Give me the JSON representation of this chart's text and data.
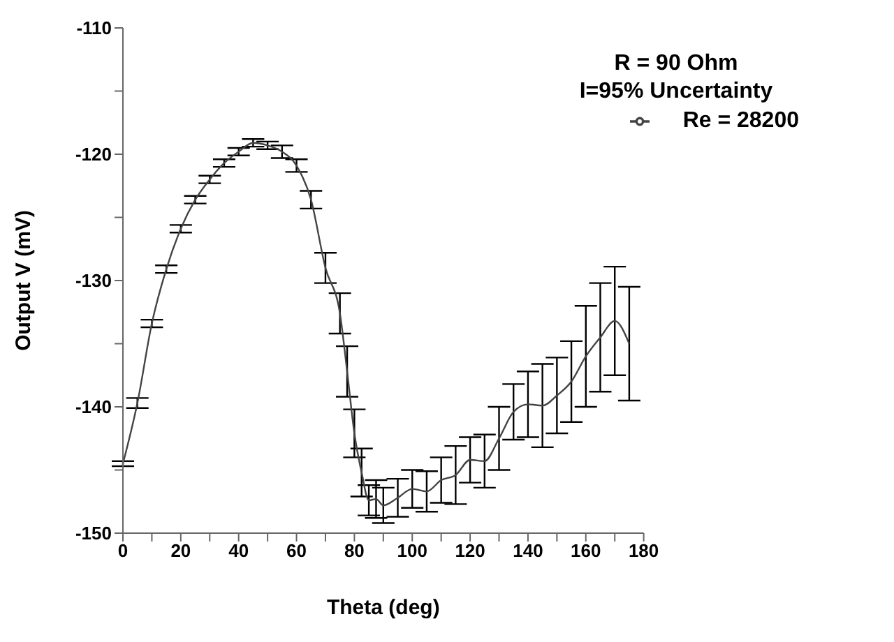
{
  "chart_data": {
    "type": "line",
    "xlabel": "Theta (deg)",
    "ylabel": "Output V  (mV)",
    "annotations": [
      "R = 90 Ohm",
      "I=95% Uncertainty"
    ],
    "x": [
      0,
      5,
      10,
      15,
      20,
      25,
      30,
      35,
      40,
      45,
      50,
      55,
      60,
      65,
      70,
      75,
      77.5,
      80,
      82.5,
      85,
      87.5,
      90,
      95,
      100,
      105,
      110,
      115,
      120,
      125,
      130,
      135,
      140,
      145,
      150,
      155,
      160,
      165,
      170,
      175
    ],
    "series": [
      {
        "name": "Re = 28200",
        "color": "#444444",
        "values": [
          -144.5,
          -139.7,
          -133.4,
          -129.1,
          -125.9,
          -123.6,
          -122.0,
          -120.7,
          -119.8,
          -119.1,
          -119.3,
          -119.8,
          -120.9,
          -123.6,
          -129.0,
          -132.6,
          -137.2,
          -142.1,
          -145.2,
          -147.4,
          -147.3,
          -147.8,
          -147.2,
          -146.5,
          -146.7,
          -145.8,
          -145.4,
          -144.2,
          -144.3,
          -142.5,
          -140.4,
          -139.8,
          -139.9,
          -139.1,
          -138.0,
          -136.0,
          -134.5,
          -133.2,
          -135.0
        ],
        "errors": [
          0.2,
          0.4,
          0.3,
          0.3,
          0.3,
          0.3,
          0.3,
          0.3,
          0.3,
          0.3,
          0.3,
          0.5,
          0.5,
          0.7,
          1.2,
          1.6,
          2.0,
          1.9,
          1.9,
          1.2,
          1.5,
          1.4,
          1.5,
          1.5,
          1.6,
          1.8,
          2.3,
          1.8,
          2.1,
          2.5,
          2.2,
          2.6,
          3.3,
          3.0,
          3.2,
          4.0,
          4.3,
          4.3,
          4.5
        ]
      }
    ],
    "xlim": [
      0,
      180
    ],
    "xticks": [
      0,
      {
        "value": 10,
        "label": null
      },
      20,
      {
        "value": 30,
        "label": null
      },
      40,
      {
        "value": 50,
        "label": null
      },
      60,
      {
        "value": 70,
        "label": null
      },
      80,
      {
        "value": 90,
        "label": null
      },
      100,
      {
        "value": 110,
        "label": null
      },
      120,
      {
        "value": 130,
        "label": null
      },
      140,
      {
        "value": 150,
        "label": null
      },
      160,
      {
        "value": 170,
        "label": null
      },
      180
    ],
    "ylim": [
      -150,
      -110
    ],
    "yticks": [
      -150,
      {
        "value": -145,
        "label": null
      },
      -140,
      {
        "value": -135,
        "label": null
      },
      -130,
      {
        "value": -125,
        "label": null
      },
      -120,
      {
        "value": -115,
        "label": null
      },
      -110
    ],
    "grid": false,
    "legend": "top right",
    "marker": "none",
    "line_style": "solid"
  }
}
